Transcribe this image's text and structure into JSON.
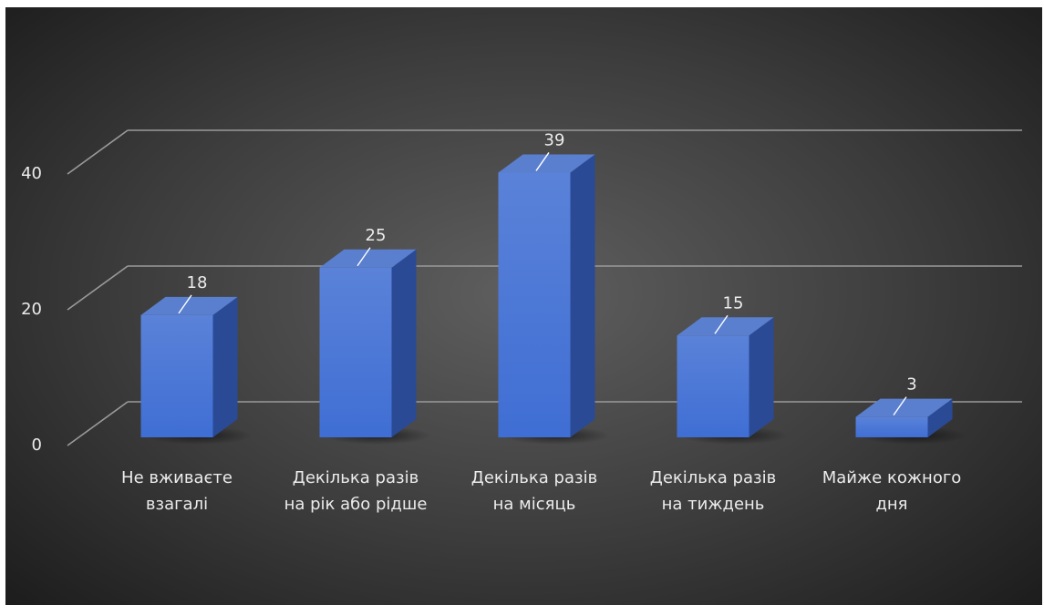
{
  "chart_data": {
    "type": "bar",
    "style": "3d-column",
    "title": "",
    "xlabel": "",
    "ylabel": "",
    "categories": [
      "Не вживаєте\nвзагалі",
      "Декілька разів\nна рік або рідше",
      "Декілька разів\nна місяць",
      "Декілька разів\nна тиждень",
      "Майже кожного\nдня"
    ],
    "values": [
      18,
      25,
      39,
      15,
      3
    ],
    "ylim": [
      0,
      40
    ],
    "yticks": [
      0,
      20,
      40
    ],
    "grid": true,
    "legend": "none",
    "colors": {
      "bar_front": "#3f6ed4",
      "bar_side": "#2a4a96",
      "bar_top": "#5a7fcf",
      "gridline": "#9a9a9a",
      "text": "#ececec"
    }
  }
}
